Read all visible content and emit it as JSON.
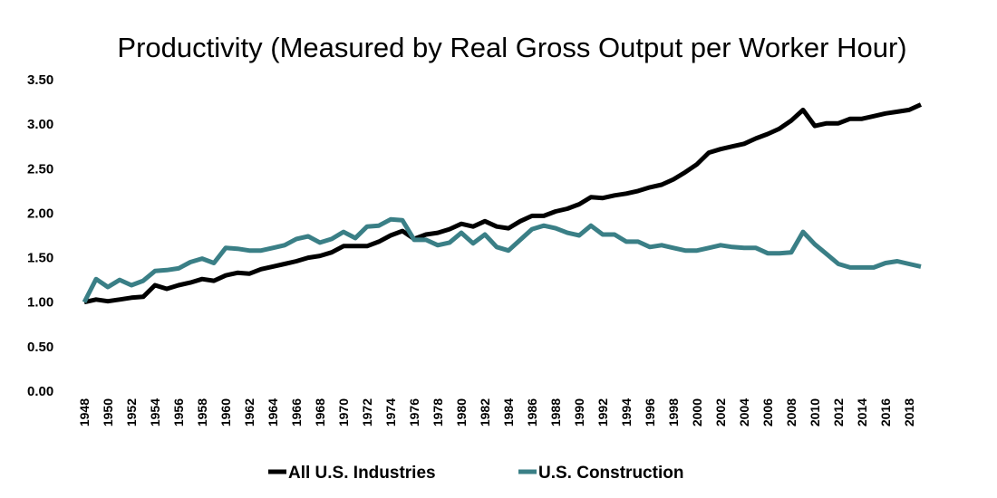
{
  "chart_data": {
    "type": "line",
    "title": "Productivity (Measured by Real Gross Output per Worker Hour)",
    "xlabel": "",
    "ylabel": "",
    "ylim": [
      0,
      3.5
    ],
    "yticks": [
      "0.00",
      "0.50",
      "1.00",
      "1.50",
      "2.00",
      "2.50",
      "3.00",
      "3.50"
    ],
    "xrange": [
      1948,
      2019
    ],
    "xtick_step": 2,
    "grid": false,
    "legend_placement": "bottom",
    "x": [
      1948,
      1949,
      1950,
      1951,
      1952,
      1953,
      1954,
      1955,
      1956,
      1957,
      1958,
      1959,
      1960,
      1961,
      1962,
      1963,
      1964,
      1965,
      1966,
      1967,
      1968,
      1969,
      1970,
      1971,
      1972,
      1973,
      1974,
      1975,
      1976,
      1977,
      1978,
      1979,
      1980,
      1981,
      1982,
      1983,
      1984,
      1985,
      1986,
      1987,
      1988,
      1989,
      1990,
      1991,
      1992,
      1993,
      1994,
      1995,
      1996,
      1997,
      1998,
      1999,
      2000,
      2001,
      2002,
      2003,
      2004,
      2005,
      2006,
      2007,
      2008,
      2009,
      2010,
      2011,
      2012,
      2013,
      2014,
      2015,
      2016,
      2017,
      2018,
      2019
    ],
    "series": [
      {
        "name": "All U.S. Industries",
        "color": "#000000",
        "values": [
          1.0,
          1.03,
          1.01,
          1.03,
          1.05,
          1.06,
          1.19,
          1.15,
          1.19,
          1.22,
          1.26,
          1.24,
          1.3,
          1.33,
          1.32,
          1.37,
          1.4,
          1.43,
          1.46,
          1.5,
          1.52,
          1.56,
          1.63,
          1.63,
          1.63,
          1.68,
          1.75,
          1.8,
          1.71,
          1.76,
          1.78,
          1.82,
          1.88,
          1.85,
          1.91,
          1.85,
          1.83,
          1.91,
          1.97,
          1.97,
          2.02,
          2.05,
          2.1,
          2.18,
          2.17,
          2.2,
          2.22,
          2.25,
          2.29,
          2.32,
          2.38,
          2.46,
          2.55,
          2.68,
          2.72,
          2.75,
          2.78,
          2.84,
          2.89,
          2.95,
          3.04,
          3.16,
          2.98,
          3.01,
          3.01,
          3.06,
          3.06,
          3.09,
          3.12,
          3.14,
          3.16,
          3.22
        ]
      },
      {
        "name": "U.S. Construction",
        "color": "#3a7f86",
        "values": [
          1.0,
          1.26,
          1.17,
          1.25,
          1.19,
          1.24,
          1.35,
          1.36,
          1.38,
          1.45,
          1.49,
          1.44,
          1.61,
          1.6,
          1.58,
          1.58,
          1.61,
          1.64,
          1.71,
          1.74,
          1.67,
          1.71,
          1.79,
          1.72,
          1.85,
          1.86,
          1.93,
          1.92,
          1.7,
          1.7,
          1.64,
          1.67,
          1.78,
          1.66,
          1.76,
          1.62,
          1.58,
          1.7,
          1.82,
          1.86,
          1.83,
          1.78,
          1.75,
          1.86,
          1.76,
          1.76,
          1.68,
          1.68,
          1.62,
          1.64,
          1.61,
          1.58,
          1.58,
          1.61,
          1.64,
          1.62,
          1.61,
          1.61,
          1.55,
          1.55,
          1.56,
          1.79,
          1.65,
          1.54,
          1.43,
          1.39,
          1.39,
          1.39,
          1.44,
          1.46,
          1.43,
          1.4
        ]
      }
    ]
  }
}
